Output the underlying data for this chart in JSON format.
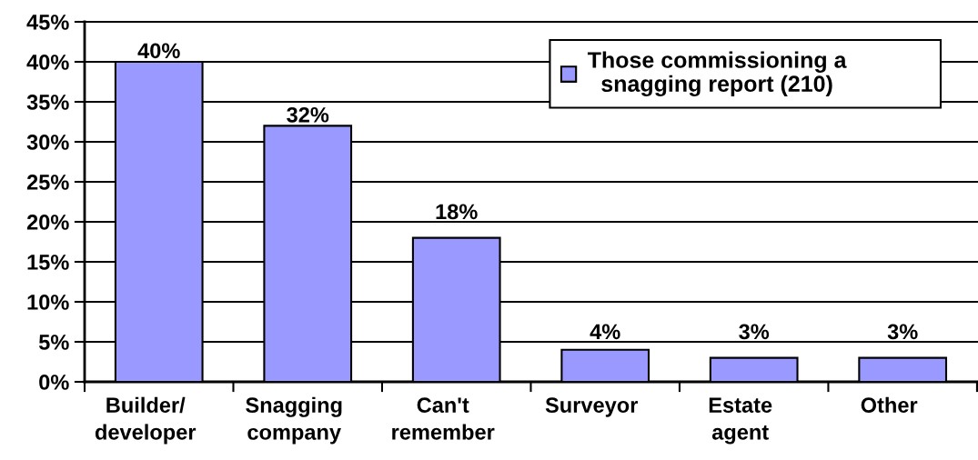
{
  "chart_data": {
    "type": "bar",
    "categories": [
      "Builder/\ndeveloper",
      "Snagging\ncompany",
      "Can't\nremember",
      "Surveyor",
      "Estate\nagent",
      "Other"
    ],
    "series": [
      {
        "name": "Those commissioning a\nsnagging report (210)",
        "color": "#9999ff",
        "values": [
          40,
          32,
          18,
          4,
          3,
          3
        ],
        "value_labels": [
          "40%",
          "32%",
          "18%",
          "4%",
          "3%",
          "3%"
        ]
      }
    ],
    "ylim": [
      0,
      45
    ],
    "yticks": [
      {
        "value": 0,
        "label": "0%"
      },
      {
        "value": 5,
        "label": "5%"
      },
      {
        "value": 10,
        "label": "10%"
      },
      {
        "value": 15,
        "label": "15%"
      },
      {
        "value": 20,
        "label": "20%"
      },
      {
        "value": 25,
        "label": "25%"
      },
      {
        "value": 30,
        "label": "30%"
      },
      {
        "value": 35,
        "label": "35%"
      },
      {
        "value": 40,
        "label": "40%"
      },
      {
        "value": 45,
        "label": "45%"
      }
    ],
    "grid": "y",
    "legend": "top right"
  }
}
